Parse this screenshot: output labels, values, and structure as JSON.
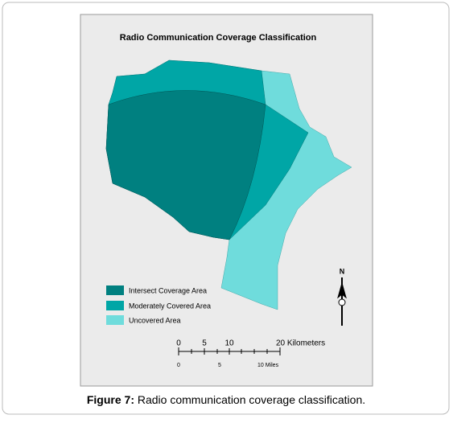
{
  "map": {
    "title": "Radio Communication Coverage Classification",
    "legend": [
      "Intersect Coverage Area",
      "Moderately Covered Area",
      "Uncovered Area"
    ],
    "north_label": "N",
    "scale_km": [
      "0",
      "5",
      "10",
      "20 Kilometers"
    ],
    "scale_miles": [
      "0",
      "5",
      "10 Miles"
    ]
  },
  "caption": {
    "label": "Figure 7:",
    "text": "Radio communication coverage classification."
  }
}
